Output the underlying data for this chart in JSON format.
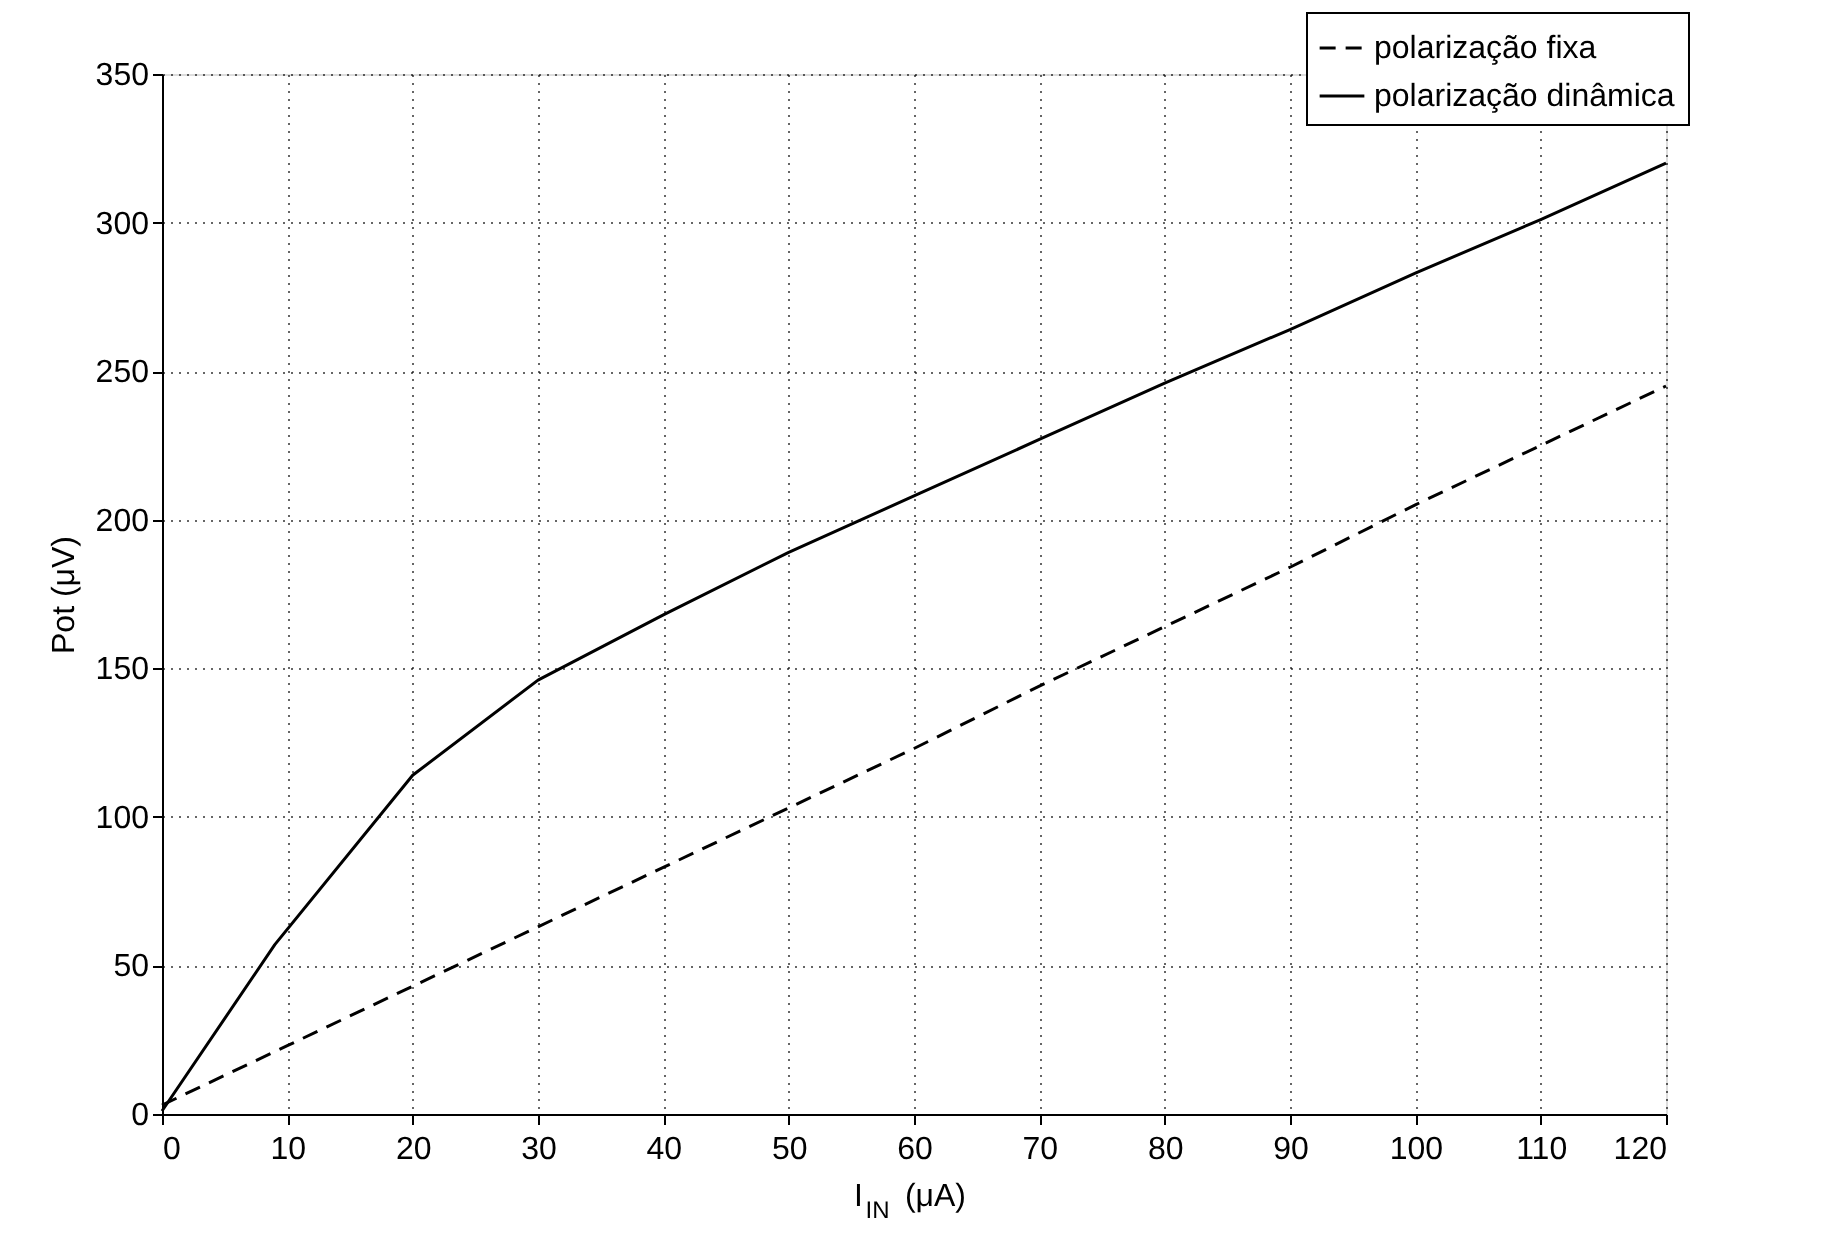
{
  "chart_data": {
    "type": "line",
    "xlabel": "I$_{IN}$ (μA)",
    "ylabel": "Pot (μV)",
    "xlim": [
      0,
      120
    ],
    "xticks": [
      0,
      10,
      20,
      30,
      40,
      50,
      60,
      70,
      80,
      90,
      100,
      110,
      120
    ],
    "ylim": [
      0,
      350
    ],
    "yticks": [
      0,
      50,
      100,
      150,
      200,
      250,
      300,
      350
    ],
    "grid": true,
    "legend": "top right",
    "marker": "none",
    "series": [
      {
        "name": "polarização fixa",
        "color": "#000000",
        "line_style": "dashed",
        "x": [
          0,
          10,
          20,
          30,
          40,
          50,
          60,
          70,
          80,
          90,
          100,
          110,
          120
        ],
        "values": [
          3,
          23,
          43,
          63,
          83,
          103,
          123,
          144,
          164,
          184,
          205,
          225,
          245
        ]
      },
      {
        "name": "polarização dinâmica",
        "color": "#000000",
        "line_style": "solid",
        "x": [
          0,
          9,
          20,
          30,
          40,
          50,
          60,
          70,
          80,
          90,
          100,
          110,
          120
        ],
        "values": [
          1,
          57,
          114,
          146,
          168,
          189,
          208,
          227,
          246,
          264,
          283,
          301,
          320
        ]
      }
    ]
  }
}
